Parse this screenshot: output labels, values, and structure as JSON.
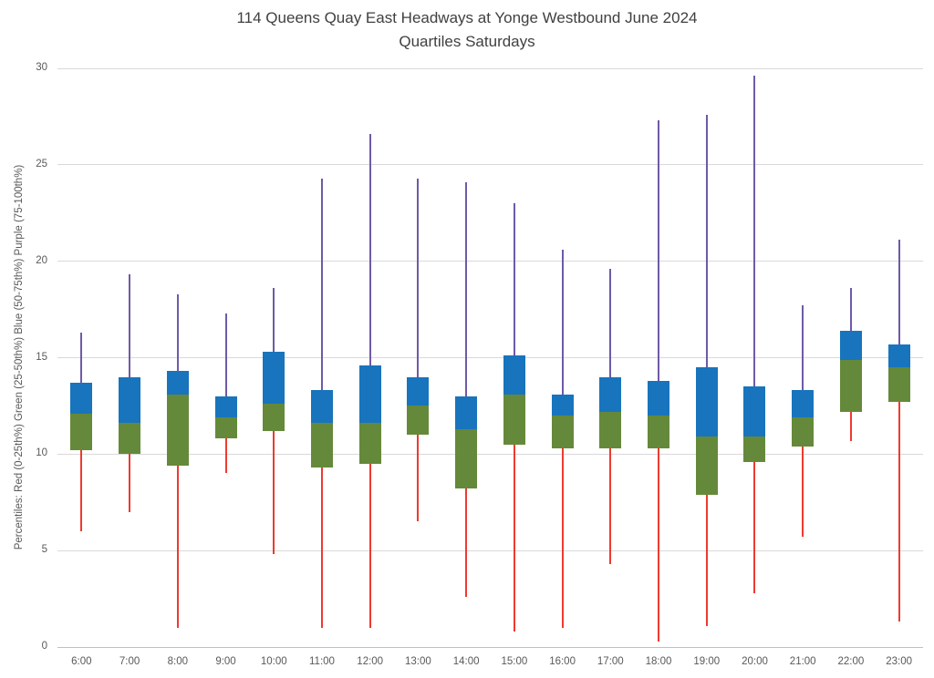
{
  "chart_data": {
    "type": "box",
    "title": "114 Queens Quay East Headways at Yonge Westbound June 2024",
    "subtitle": "Quartiles Saturdays",
    "ylabel": "Percentiles:  Red (0-25th%)  Green (25-50th%)  Blue (50-75th%)  Purple (75-100th%)",
    "xlabel": "",
    "ylim": [
      0,
      30
    ],
    "y_ticks": [
      0,
      5,
      10,
      15,
      20,
      25,
      30
    ],
    "grid": "horizontal",
    "legend_position": "none",
    "categories": [
      "6:00",
      "7:00",
      "8:00",
      "9:00",
      "10:00",
      "11:00",
      "12:00",
      "13:00",
      "14:00",
      "15:00",
      "16:00",
      "17:00",
      "18:00",
      "19:00",
      "20:00",
      "21:00",
      "22:00",
      "23:00"
    ],
    "boxes": [
      {
        "hour": "6:00",
        "min": 6.0,
        "q25": 10.2,
        "q50": 12.1,
        "q75": 13.7,
        "max": 16.3
      },
      {
        "hour": "7:00",
        "min": 7.0,
        "q25": 10.0,
        "q50": 11.6,
        "q75": 14.0,
        "max": 19.3
      },
      {
        "hour": "8:00",
        "min": 1.0,
        "q25": 9.4,
        "q50": 13.1,
        "q75": 14.3,
        "max": 18.3
      },
      {
        "hour": "9:00",
        "min": 9.0,
        "q25": 10.8,
        "q50": 11.9,
        "q75": 13.0,
        "max": 17.3
      },
      {
        "hour": "10:00",
        "min": 4.8,
        "q25": 11.2,
        "q50": 12.6,
        "q75": 15.3,
        "max": 18.6
      },
      {
        "hour": "11:00",
        "min": 1.0,
        "q25": 9.3,
        "q50": 11.6,
        "q75": 13.3,
        "max": 24.3
      },
      {
        "hour": "12:00",
        "min": 1.0,
        "q25": 9.5,
        "q50": 11.6,
        "q75": 14.6,
        "max": 26.6
      },
      {
        "hour": "13:00",
        "min": 6.5,
        "q25": 11.0,
        "q50": 12.5,
        "q75": 14.0,
        "max": 24.3
      },
      {
        "hour": "14:00",
        "min": 2.6,
        "q25": 8.2,
        "q50": 11.3,
        "q75": 13.0,
        "max": 24.1
      },
      {
        "hour": "15:00",
        "min": 0.8,
        "q25": 10.5,
        "q50": 13.1,
        "q75": 15.1,
        "max": 23.0
      },
      {
        "hour": "16:00",
        "min": 1.0,
        "q25": 10.3,
        "q50": 12.0,
        "q75": 13.1,
        "max": 20.6
      },
      {
        "hour": "17:00",
        "min": 4.3,
        "q25": 10.3,
        "q50": 12.2,
        "q75": 14.0,
        "max": 19.6
      },
      {
        "hour": "18:00",
        "min": 0.3,
        "q25": 10.3,
        "q50": 12.0,
        "q75": 13.8,
        "max": 27.3
      },
      {
        "hour": "19:00",
        "min": 1.1,
        "q25": 7.9,
        "q50": 10.9,
        "q75": 14.5,
        "max": 27.6
      },
      {
        "hour": "20:00",
        "min": 2.8,
        "q25": 9.6,
        "q50": 10.9,
        "q75": 13.5,
        "max": 29.6
      },
      {
        "hour": "21:00",
        "min": 5.7,
        "q25": 10.4,
        "q50": 11.9,
        "q75": 13.3,
        "max": 17.7
      },
      {
        "hour": "22:00",
        "min": 10.7,
        "q25": 12.2,
        "q50": 14.9,
        "q75": 16.4,
        "max": 18.6
      },
      {
        "hour": "23:00",
        "min": 1.3,
        "q25": 12.7,
        "q50": 14.5,
        "q75": 15.7,
        "max": 21.1
      }
    ],
    "segment_meaning": {
      "red_whisker": "0-25th percentile range",
      "green_box": "25-50th percentile range",
      "blue_box": "50-75th percentile range",
      "purple_whisker": "75-100th percentile range"
    },
    "colors": {
      "red": "#ee3a30",
      "green": "#65893a",
      "blue": "#1874bc",
      "purple": "#6f5aa7",
      "gridline": "#d9d9d9",
      "axis_line": "#bfbfbf",
      "title_text": "#404040",
      "tick_text": "#595959"
    }
  }
}
